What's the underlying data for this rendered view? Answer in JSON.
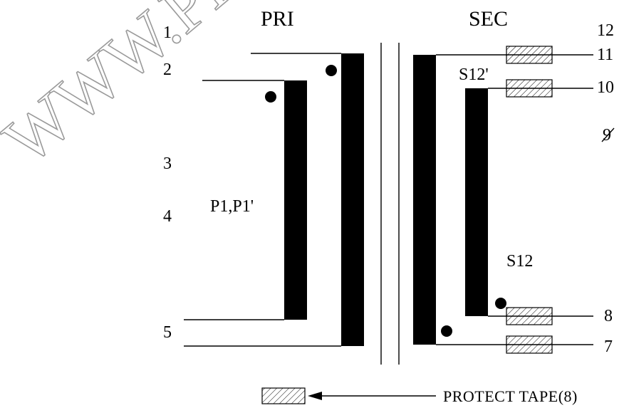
{
  "titles": {
    "primary": "PRI",
    "secondary": "SEC"
  },
  "pins_left": [
    "1",
    "2",
    "3",
    "4",
    "5"
  ],
  "pins_right": [
    "12",
    "11",
    "10",
    "9",
    "8",
    "7"
  ],
  "windings": {
    "primary": "P1,P1'",
    "s12_prime": "S12'",
    "s12": "S12"
  },
  "legend": {
    "label": "PROTECT TAPE(8)"
  },
  "watermark": "WWW.PRS",
  "colors": {
    "ink": "#000000",
    "watermark": "#9a9a9a",
    "background": "#ffffff"
  }
}
